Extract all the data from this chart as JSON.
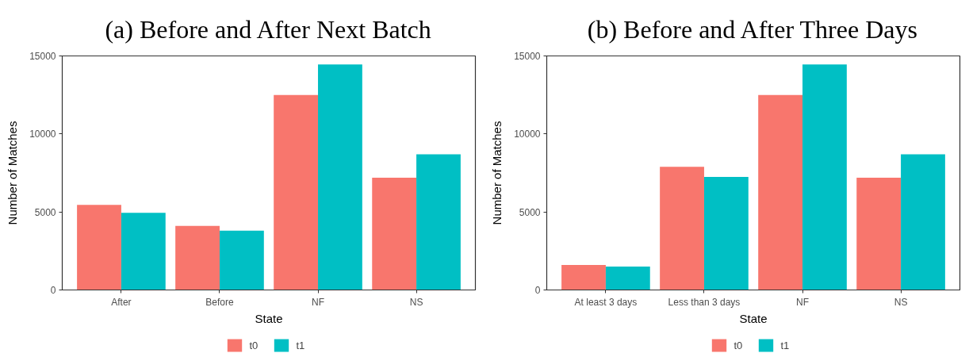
{
  "chart_data": [
    {
      "type": "bar",
      "title": "(a) Before and After Next Batch",
      "xlabel": "State",
      "ylabel": "Number of Matches",
      "categories": [
        "After",
        "Before",
        "NF",
        "NS"
      ],
      "series": [
        {
          "name": "t0",
          "color": "#f8766d",
          "values": [
            5450,
            4100,
            12500,
            7200
          ]
        },
        {
          "name": "t1",
          "color": "#00bfc4",
          "values": [
            4950,
            3800,
            14450,
            8700
          ]
        }
      ],
      "ylim": [
        0,
        15000
      ],
      "yticks": [
        0,
        5000,
        10000,
        15000
      ],
      "grid": false,
      "legend": "bottom"
    },
    {
      "type": "bar",
      "title": "(b) Before and After Three Days",
      "xlabel": "State",
      "ylabel": "Number of Matches",
      "categories": [
        "At least 3 days",
        "Less than 3 days",
        "NF",
        "NS"
      ],
      "series": [
        {
          "name": "t0",
          "color": "#f8766d",
          "values": [
            1600,
            7900,
            12500,
            7200
          ]
        },
        {
          "name": "t1",
          "color": "#00bfc4",
          "values": [
            1500,
            7250,
            14450,
            8700
          ]
        }
      ],
      "ylim": [
        0,
        15000
      ],
      "yticks": [
        0,
        5000,
        10000,
        15000
      ],
      "grid": false,
      "legend": "bottom"
    }
  ]
}
